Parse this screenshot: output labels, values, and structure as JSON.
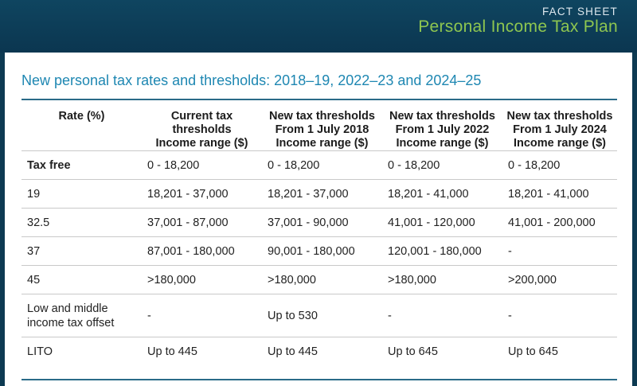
{
  "header": {
    "kicker": "FACT SHEET",
    "title": "Personal Income Tax Plan"
  },
  "section": {
    "title": "New personal tax rates and thresholds: 2018–19, 2022–23 and 2024–25"
  },
  "table": {
    "headers": [
      [
        "Rate (%)"
      ],
      [
        "Current tax",
        "thresholds",
        "Income range ($)"
      ],
      [
        "New tax thresholds",
        "From 1 July 2018",
        "Income range ($)"
      ],
      [
        "New tax thresholds",
        "From 1 July 2022",
        "Income range ($)"
      ],
      [
        "New tax thresholds",
        "From 1 July 2024",
        "Income range ($)"
      ]
    ],
    "rows": [
      [
        "Tax free",
        "0 - 18,200",
        "0 - 18,200",
        "0 - 18,200",
        "0 - 18,200"
      ],
      [
        "19",
        "18,201 - 37,000",
        "18,201 - 37,000",
        "18,201 - 41,000",
        "18,201 - 41,000"
      ],
      [
        "32.5",
        "37,001 - 87,000",
        "37,001 - 90,000",
        "41,001 - 120,000",
        "41,001 - 200,000"
      ],
      [
        "37",
        "87,001 - 180,000",
        "90,001 - 180,000",
        "120,001 - 180,000",
        "-"
      ],
      [
        "45",
        ">180,000",
        ">180,000",
        ">180,000",
        ">200,000"
      ],
      [
        "Low and middle income tax offset",
        "-",
        "Up to 530",
        "-",
        "-"
      ],
      [
        "LITO",
        "Up to 445",
        "Up to 445",
        "Up to 645",
        "Up to 645"
      ]
    ]
  }
}
